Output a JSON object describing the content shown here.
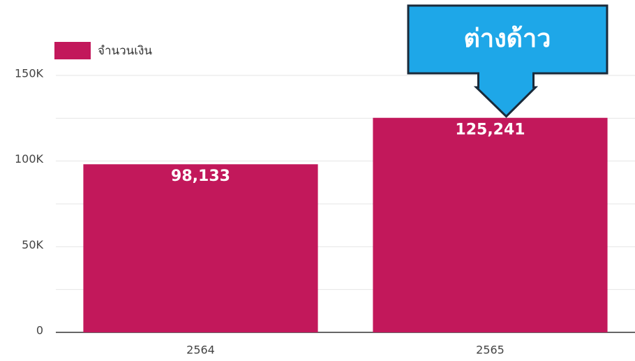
{
  "chart_data": {
    "type": "bar",
    "categories": [
      "2564",
      "2565"
    ],
    "series": [
      {
        "name": "จำนวนเงิน",
        "color": "#c2185b",
        "values": [
          98133,
          125241
        ],
        "value_labels": [
          "98,133",
          "125,241"
        ]
      }
    ],
    "ylim": [
      0,
      150000
    ],
    "yticks": [
      {
        "value": 0,
        "label": "0"
      },
      {
        "value": 50000,
        "label": "50K"
      },
      {
        "value": 100000,
        "label": "100K"
      },
      {
        "value": 150000,
        "label": "150K"
      }
    ],
    "minor_yticks": [
      25000,
      75000,
      125000
    ],
    "grid": true,
    "legend": "top-left",
    "annotation": {
      "text": "ต่างด้าว",
      "target": 1,
      "color": "#1ea7e8"
    }
  }
}
